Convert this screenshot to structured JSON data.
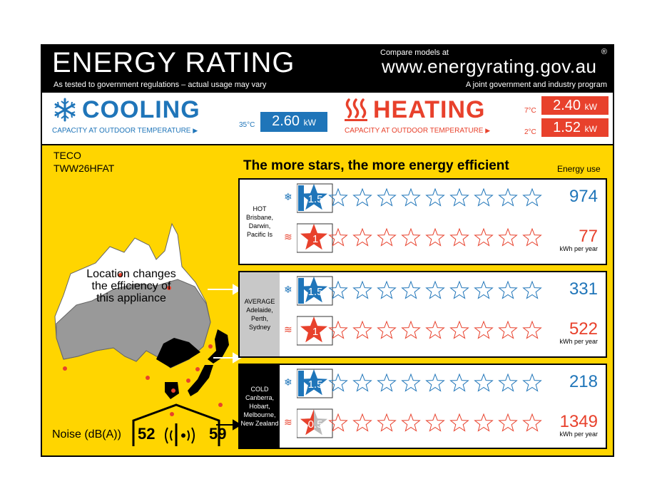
{
  "header": {
    "title": "ENERGY RATING",
    "subtitle": "As tested to government regulations – actual usage may vary",
    "compare_label": "Compare models at",
    "url": "www.energyrating.gov.au",
    "joint_program": "A joint government and industry program",
    "registered_mark": "®"
  },
  "cooling": {
    "word": "COOLING",
    "subtitle": "CAPACITY AT OUTDOOR TEMPERATURE",
    "temp": "35°C",
    "capacity": "2.60",
    "unit": "kW",
    "color": "#1f75b9"
  },
  "heating": {
    "word": "HEATING",
    "subtitle": "CAPACITY AT OUTDOOR TEMPERATURE",
    "temp_high": "7°C",
    "capacity_high": "2.40",
    "temp_low": "2°C",
    "capacity_low": "1.52",
    "unit": "kW",
    "color": "#e8412c"
  },
  "product": {
    "brand": "TECO",
    "model": "TWW26HFAT"
  },
  "tagline": "The more stars, the more energy efficient",
  "energy_use_label": "Energy use",
  "kwh_label": "kWh per year",
  "map_text": "Location changes the efficiency of this appliance",
  "zones": [
    {
      "label_lines": [
        "HOT",
        "Brisbane,",
        "Darwin,",
        "Pacific Is"
      ],
      "cooling": {
        "stars": 1.5,
        "stars_label": "1.5",
        "energy": "974"
      },
      "heating": {
        "stars": 1,
        "stars_label": "1",
        "energy": "77"
      }
    },
    {
      "label_lines": [
        "AVERAGE",
        "Adelaide,",
        "Perth,",
        "Sydney"
      ],
      "cooling": {
        "stars": 1.5,
        "stars_label": "1.5",
        "energy": "331"
      },
      "heating": {
        "stars": 1,
        "stars_label": "1",
        "energy": "522"
      }
    },
    {
      "label_lines": [
        "COLD",
        "Canberra,",
        "Hobart,",
        "Melbourne,",
        "New Zealand"
      ],
      "cooling": {
        "stars": 1.5,
        "stars_label": "1.5",
        "energy": "218"
      },
      "heating": {
        "stars": 0.5,
        "stars_label": "0.5",
        "energy": "1349"
      }
    }
  ],
  "noise": {
    "label": "Noise (dB(A))",
    "indoor": "52",
    "outdoor": "59"
  }
}
